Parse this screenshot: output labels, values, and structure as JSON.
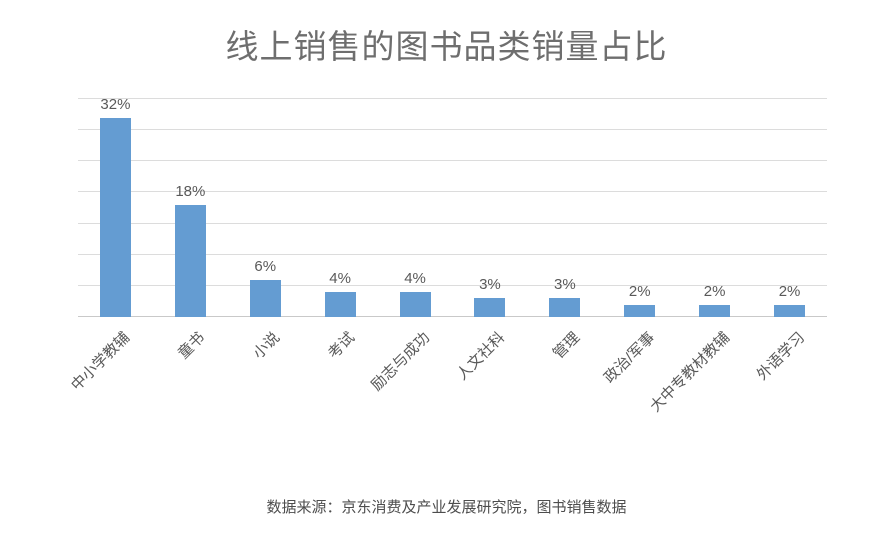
{
  "chart_data": {
    "type": "bar",
    "title": "线上销售的图书品类销量占比",
    "categories": [
      "中小学教辅",
      "童书",
      "小说",
      "考试",
      "励志与成功",
      "人文社科",
      "管理",
      "政治/军事",
      "大中专教材教辅",
      "外语学习"
    ],
    "values": [
      32,
      18,
      6,
      4,
      4,
      3,
      3,
      2,
      2,
      2
    ],
    "unit": "%",
    "xlabel": "",
    "ylabel": "",
    "ylim": [
      0,
      35
    ],
    "gridline_step": 5,
    "grid": "horizontal",
    "legend": "none",
    "value_labels_shown": true,
    "category_label_rotation_deg": 45,
    "colors": {
      "bar": "#649CD2",
      "gridline": "#DCDCDC",
      "axis_line": "#C9C9C9",
      "value_label": "#595959",
      "category_label": "#595959",
      "title": "#6E6E6E"
    }
  },
  "footer": {
    "source_note": "数据来源：京东消费及产业发展研究院，图书销售数据"
  }
}
